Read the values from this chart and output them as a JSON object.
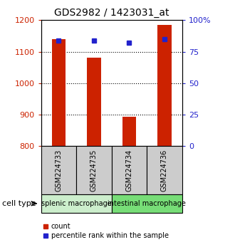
{
  "title": "GDS2982 / 1423031_at",
  "samples": [
    "GSM224733",
    "GSM224735",
    "GSM224734",
    "GSM224736"
  ],
  "counts": [
    1140,
    1080,
    893,
    1185
  ],
  "percentile_ranks": [
    84,
    84,
    82,
    85
  ],
  "ylim_left": [
    800,
    1200
  ],
  "ylim_right": [
    0,
    100
  ],
  "yticks_left": [
    800,
    900,
    1000,
    1100,
    1200
  ],
  "yticks_right": [
    0,
    25,
    50,
    75,
    100
  ],
  "ytick_labels_right": [
    "0",
    "25",
    "50",
    "75",
    "100%"
  ],
  "bar_color": "#cc2200",
  "dot_color": "#2222cc",
  "left_axis_color": "#cc2200",
  "right_axis_color": "#2222cc",
  "groups": [
    {
      "label": "splenic macrophage",
      "samples": [
        0,
        1
      ],
      "color": "#cceecc"
    },
    {
      "label": "intestinal macrophage",
      "samples": [
        2,
        3
      ],
      "color": "#77dd77"
    }
  ],
  "cell_type_label": "cell type",
  "legend_count_label": "count",
  "legend_percentile_label": "percentile rank within the sample",
  "bar_width": 0.4,
  "dotted_gridlines": [
    900,
    1000,
    1100
  ]
}
